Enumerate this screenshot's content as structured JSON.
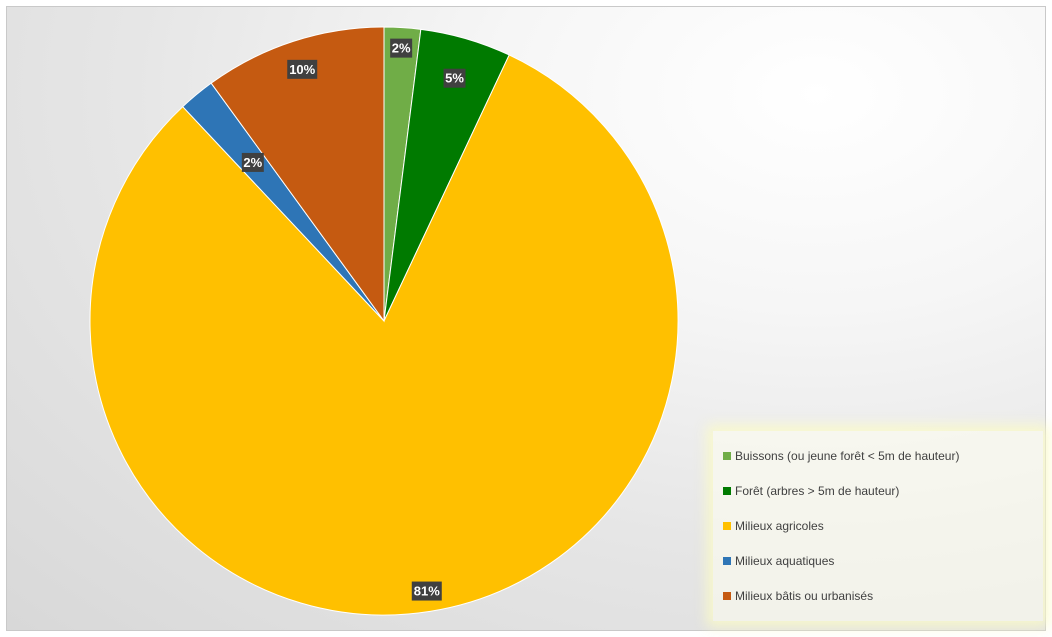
{
  "chart_data": {
    "type": "pie",
    "title": "",
    "categories": [
      "Buissons (ou jeune forêt < 5m de hauteur)",
      "Forêt (arbres > 5m de hauteur)",
      "Milieux agricoles",
      "Milieux aquatiques",
      "Milieux bâtis ou urbanisés"
    ],
    "values": [
      2,
      5,
      81,
      2,
      10
    ],
    "labels": [
      "2%",
      "5%",
      "81%",
      "2%",
      "10%"
    ],
    "colors": [
      "#70ad47",
      "#007a00",
      "#ffc000",
      "#2e75b6",
      "#c55a11"
    ],
    "legend_position": "bottom-right",
    "grid": false
  }
}
